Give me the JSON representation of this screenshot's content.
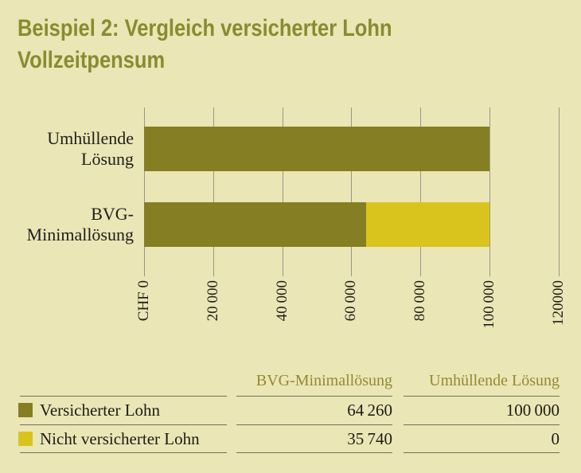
{
  "page": {
    "background": "#ebe6b6"
  },
  "title": {
    "line1": "Beispiel 2: Vergleich versicherter Lohn",
    "line2": "Vollzeitpensum",
    "color": "#8a8b2f"
  },
  "chart_data": {
    "type": "bar",
    "orientation": "horizontal",
    "stacked": true,
    "title": "Beispiel 2: Vergleich versicherter Lohn Vollzeitpensum",
    "categories": [
      "Umhüllende Lösung",
      "BVG-Minimallösung"
    ],
    "series": [
      {
        "name": "Versicherter Lohn",
        "color": "#857e22",
        "values": [
          100000,
          64260
        ]
      },
      {
        "name": "Nicht versicherter Lohn",
        "color": "#d9c41e",
        "values": [
          0,
          35740
        ]
      }
    ],
    "xlim": [
      0,
      120000
    ],
    "x_ticks": [
      {
        "value": 0,
        "label": "CHF 0"
      },
      {
        "value": 20000,
        "label": "20 000"
      },
      {
        "value": 40000,
        "label": "40 000"
      },
      {
        "value": 60000,
        "label": "60 000"
      },
      {
        "value": 80000,
        "label": "80 000"
      },
      {
        "value": 100000,
        "label": "100 000"
      },
      {
        "value": 120000,
        "label": "120000"
      }
    ],
    "grid": true,
    "tick_label_rotation": 90,
    "legend_position": "table-below"
  },
  "table": {
    "header": [
      "BVG-Minimallösung",
      "Umhüllende Lösung"
    ],
    "rows": [
      {
        "swatch_color": "#857e22",
        "label": "Versicherter Lohn",
        "values": [
          "64 260",
          "100 000"
        ]
      },
      {
        "swatch_color": "#d9c41e",
        "label": "Nicht versicherter Lohn",
        "values": [
          "35 740",
          "0"
        ]
      }
    ]
  },
  "colors": {
    "background": "#ebe6b6",
    "bar_olive": "#857e22",
    "bar_yellow": "#d9c41e",
    "gridline": "#97978a",
    "table_rule": "#6f6f58",
    "table_header_text": "#938a2e",
    "text": "#1c1c16"
  }
}
